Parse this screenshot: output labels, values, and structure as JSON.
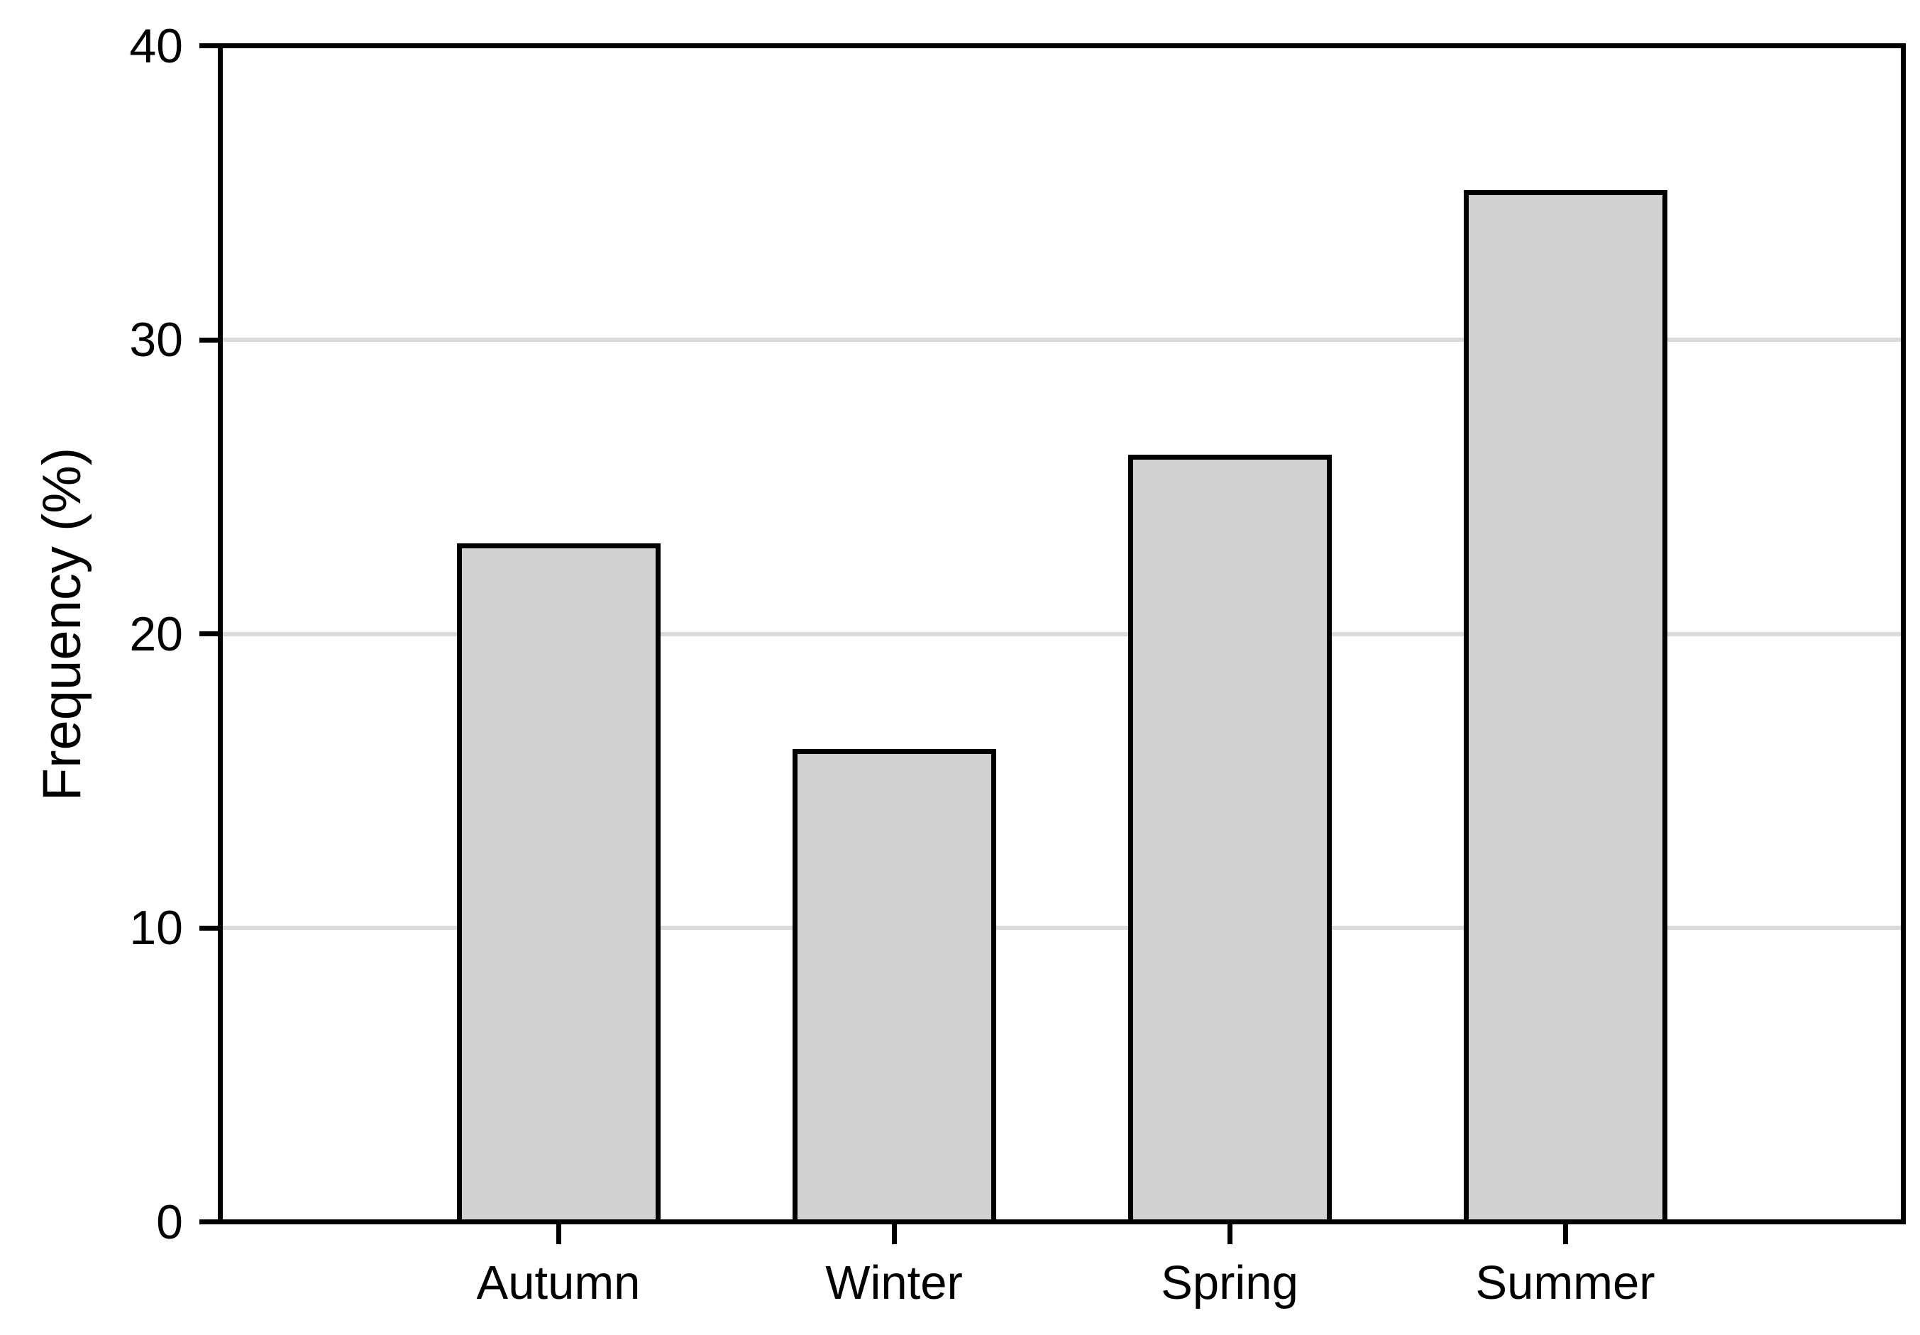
{
  "chart_data": {
    "type": "bar",
    "categories": [
      "Autumn",
      "Winter",
      "Spring",
      "Summer"
    ],
    "values": [
      23,
      16,
      26,
      35
    ],
    "ylabel": "Frequency (%)",
    "ylim": [
      0,
      40
    ],
    "yticks": [
      0,
      10,
      20,
      30,
      40
    ],
    "gridlines_at": [
      10,
      20,
      30
    ],
    "grid": "horizontal",
    "legend": "none",
    "colors": {
      "bar_fill": "#d2d2d2",
      "bar_border": "#000000",
      "gridline": "#dadada",
      "axis": "#000000",
      "background": "#ffffff"
    }
  }
}
